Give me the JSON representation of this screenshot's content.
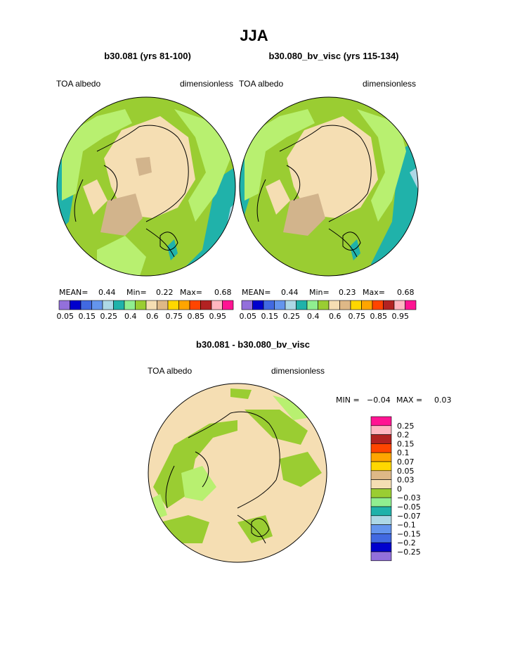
{
  "main_title": "JJA",
  "panels": [
    {
      "case_label": "b30.081 (yrs 81-100)",
      "variable": "TOA albedo",
      "units": "dimensionless",
      "stats": {
        "mean_label": "MEAN=",
        "mean": "0.44",
        "min_label": "Min=",
        "min": "0.22",
        "max_label": "Max=",
        "max": "0.68"
      }
    },
    {
      "case_label": "b30.080_bv_visc (yrs 115-134)",
      "variable": "TOA albedo",
      "units": "dimensionless",
      "stats": {
        "mean_label": "MEAN=",
        "mean": "0.44",
        "min_label": "Min=",
        "min": "0.23",
        "max_label": "Max=",
        "max": "0.68"
      }
    }
  ],
  "albedo_colorbar": {
    "colors": [
      "#9370db",
      "#0000cd",
      "#4169e1",
      "#6495ed",
      "#add8e6",
      "#20b2aa",
      "#90ee90",
      "#9acd32",
      "#f5deb3",
      "#deb887",
      "#ffd700",
      "#ffa500",
      "#ff4500",
      "#b22222",
      "#ffb6c1",
      "#ff1493"
    ],
    "tick_labels": [
      "0.05",
      "0.15",
      "0.25",
      "0.4",
      "0.6",
      "0.75",
      "0.85",
      "0.95"
    ]
  },
  "difference": {
    "case_label": "b30.081 - b30.080_bv_visc",
    "variable": "TOA albedo",
    "units": "dimensionless",
    "min_label": "MIN =",
    "min": "−0.04",
    "max_label": "MAX =",
    "max": "0.03"
  },
  "diff_colorbar": {
    "colors": [
      "#ff1493",
      "#ffb6c1",
      "#b22222",
      "#ff4500",
      "#ffa500",
      "#ffd700",
      "#deb887",
      "#f5deb3",
      "#9acd32",
      "#90ee90",
      "#20b2aa",
      "#add8e6",
      "#6495ed",
      "#4169e1",
      "#0000cd",
      "#9370db"
    ],
    "tick_labels": [
      "0.25",
      "0.2",
      "0.15",
      "0.1",
      "0.07",
      "0.05",
      "0.03",
      "0",
      "−0.03",
      "−0.05",
      "−0.07",
      "−0.1",
      "−0.15",
      "−0.2",
      "−0.25"
    ]
  },
  "map_colors": {
    "ice": "#f5deb3",
    "greenland": "#d2b48c",
    "green_dark": "#9acd32",
    "green_light": "#b8f070",
    "teal": "#20b2aa",
    "light_blue": "#add8e6"
  }
}
